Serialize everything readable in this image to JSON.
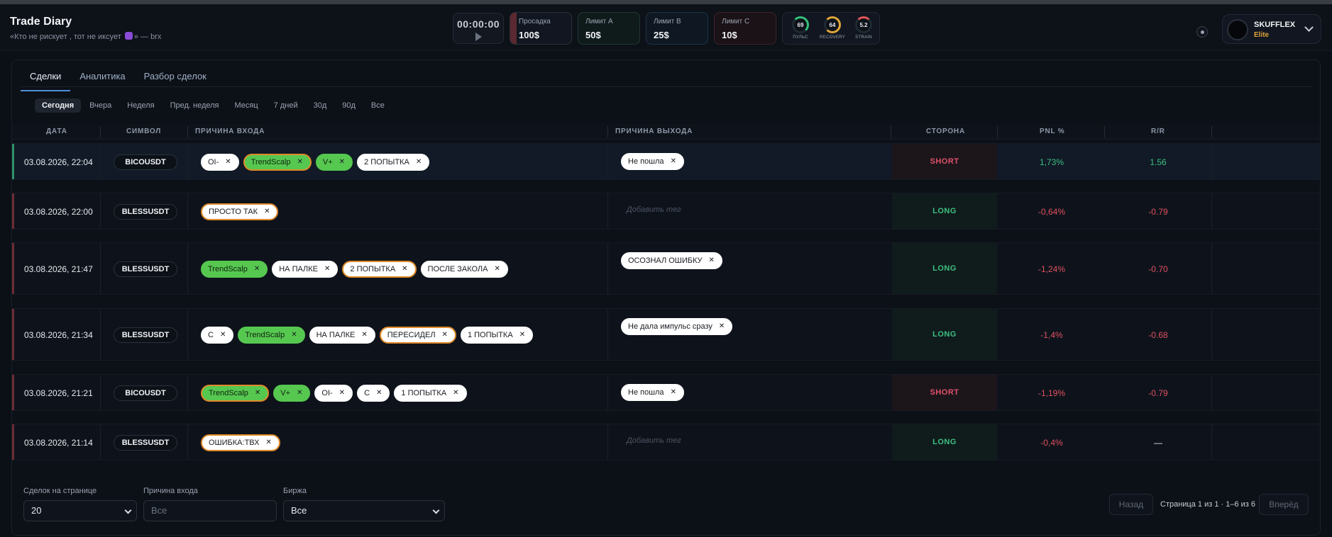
{
  "app": {
    "title": "Trade Diary",
    "quote_pre": "«Кто не рискует , тот не иксует",
    "quote_post": "» — brx"
  },
  "header": {
    "timer": "00:00:00",
    "drawdown": {
      "label": "Просадка",
      "value": "100$"
    },
    "limit_a": {
      "label": "Лимит A",
      "value": "50$"
    },
    "limit_b": {
      "label": "Лимит B",
      "value": "25$"
    },
    "limit_c": {
      "label": "Лимит C",
      "value": "10$"
    },
    "gauges": [
      {
        "label": "ПУЛЬС",
        "value": "69"
      },
      {
        "label": "RECOVERY",
        "value": "64"
      },
      {
        "label": "STRAIN",
        "value": "5.2"
      }
    ],
    "profile": {
      "name": "SKUFFLEX",
      "tier": "Elite"
    }
  },
  "tabs": [
    "Сделки",
    "Аналитика",
    "Разбор сделок"
  ],
  "periods": [
    "Сегодня",
    "Вчера",
    "Неделя",
    "Пред. неделя",
    "Месяц",
    "7 дней",
    "30д",
    "90д",
    "Все"
  ],
  "columns": [
    "ДАТА",
    "СИМВОЛ",
    "ПРИЧИНА ВХОДА",
    "ПРИЧИНА ВЫХОДА",
    "СТОРОНА",
    "PNL %",
    "R/R"
  ],
  "add_tag_placeholder": "Добавить тег",
  "rows": [
    {
      "date": "03.08.2026, 22:04",
      "symbol": "BICOUSDT",
      "entry": [
        {
          "t": "OI-",
          "s": "white"
        },
        {
          "t": "TrendScalp",
          "s": "green-orange"
        },
        {
          "t": "V+",
          "s": "green"
        },
        {
          "t": "2 ПОПЫТКА",
          "s": "white"
        }
      ],
      "exit": [
        {
          "t": "Не пошла",
          "s": "white"
        }
      ],
      "side": "SHORT",
      "pnl": "1,73%",
      "rr": "1.56"
    },
    {
      "date": "03.08.2026, 22:00",
      "symbol": "BLESSUSDT",
      "entry": [
        {
          "t": "ПРОСТО ТАК",
          "s": "orange"
        }
      ],
      "exit": [],
      "side": "LONG",
      "pnl": "-0,64%",
      "rr": "-0.79"
    },
    {
      "date": "03.08.2026, 21:47",
      "symbol": "BLESSUSDT",
      "entry": [
        {
          "t": "TrendScalp",
          "s": "green"
        },
        {
          "t": "НА ПАЛКЕ",
          "s": "white"
        },
        {
          "t": "2 ПОПЫТКА",
          "s": "orange"
        },
        {
          "t": "ПОСЛЕ ЗАКОЛА",
          "s": "white"
        }
      ],
      "exit": [
        {
          "t": "ОСОЗНАЛ ОШИБКУ",
          "s": "white"
        }
      ],
      "side": "LONG",
      "pnl": "-1,24%",
      "rr": "-0.70"
    },
    {
      "date": "03.08.2026, 21:34",
      "symbol": "BLESSUSDT",
      "entry": [
        {
          "t": "C",
          "s": "white"
        },
        {
          "t": "TrendScalp",
          "s": "green"
        },
        {
          "t": "НА ПАЛКЕ",
          "s": "white"
        },
        {
          "t": "ПЕРЕСИДЕЛ",
          "s": "orange"
        },
        {
          "t": "1 ПОПЫТКА",
          "s": "white"
        }
      ],
      "exit": [
        {
          "t": "Не дала импульс сразу",
          "s": "white"
        }
      ],
      "side": "LONG",
      "pnl": "-1,4%",
      "rr": "-0.68"
    },
    {
      "date": "03.08.2026, 21:21",
      "symbol": "BICOUSDT",
      "entry": [
        {
          "t": "TrendScalp",
          "s": "green-orange"
        },
        {
          "t": "V+",
          "s": "green"
        },
        {
          "t": "OI-",
          "s": "white"
        },
        {
          "t": "C",
          "s": "white"
        },
        {
          "t": "1 ПОПЫТКА",
          "s": "white"
        }
      ],
      "exit": [
        {
          "t": "Не пошла",
          "s": "white"
        }
      ],
      "side": "SHORT",
      "pnl": "-1,19%",
      "rr": "-0.79"
    },
    {
      "date": "03.08.2026, 21:14",
      "symbol": "BLESSUSDT",
      "entry": [
        {
          "t": "ОШИБКА:ТВХ",
          "s": "orange"
        }
      ],
      "exit": [],
      "side": "LONG",
      "pnl": "-0,4%",
      "rr": "—"
    }
  ],
  "footer": {
    "per_page_label": "Сделок на странице",
    "per_page_value": "20",
    "entry_label": "Причина входа",
    "entry_placeholder": "Все",
    "exchange_label": "Биржа",
    "exchange_value": "Все",
    "prev": "Назад",
    "next": "Вперёд",
    "page_info": "Страница 1 из 1 · 1–6 из 6"
  },
  "colors": {
    "accent": "#4f8fd6",
    "long": "#3fbf82",
    "short": "#e0506a",
    "tag_green": "#56c850",
    "tag_orange_border": "#e08a2a"
  }
}
